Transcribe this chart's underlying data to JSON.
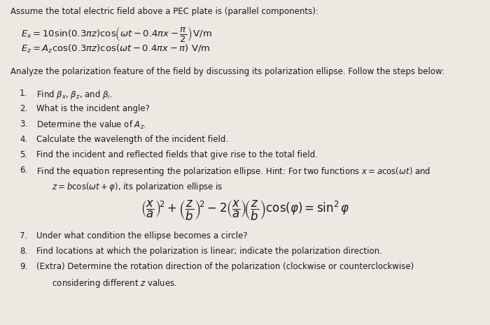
{
  "bg_color": "#ece9e2",
  "text_color": "#1a1a1a",
  "title_line": "Assume the total electric field above a PEC plate is (parallel components):",
  "eq1": "$E_x = 10 \\sin(0.3\\pi z) \\cos\\!\\left(\\omega t - 0.4\\pi x - \\dfrac{\\pi}{2}\\right)\\!$ V/m",
  "eq2": "$E_z = A_z \\cos(0.3\\pi z) \\cos(\\omega t - 0.4\\pi x - \\pi)$ V/m",
  "analyze_line": "Analyze the polarization feature of the field by discussing its polarization ellipse. Follow the steps below:",
  "items": [
    [
      "Find $\\beta_x$, $\\beta_z$, and $\\beta_i$.",
      false
    ],
    [
      "What is the incident angle?",
      false
    ],
    [
      "Determine the value of $A_z$.",
      false
    ],
    [
      "Calculate the wavelength of the incident field.",
      false
    ],
    [
      "Find the incident and reflected fields that give rise to the total field.",
      false
    ],
    [
      "Find the equation representing the polarization ellipse. Hint: For two functions $x = a\\cos(\\omega t)$ and",
      true
    ]
  ],
  "item6_line2": "      $z = b\\cos(\\omega t + \\varphi)$, its polarization ellipse is",
  "ellipse_eq": "$\\left(\\dfrac{x}{a}\\right)^{\\!2} + \\left(\\dfrac{z}{b}\\right)^{\\!2} - 2\\left(\\dfrac{x}{a}\\right)\\!\\left(\\dfrac{z}{b}\\right)\\cos(\\varphi) = \\sin^2 \\varphi$",
  "items2": [
    [
      "Under what condition the ellipse becomes a circle?",
      false
    ],
    [
      "Find locations at which the polarization is linear; indicate the polarization direction.",
      false
    ],
    [
      "(Extra) Determine the rotation direction of the polarization (clockwise or counterclockwise)",
      true
    ]
  ],
  "item9_line2": "      considering different $z$ values.",
  "figsize": [
    7.0,
    4.65
  ],
  "dpi": 100
}
